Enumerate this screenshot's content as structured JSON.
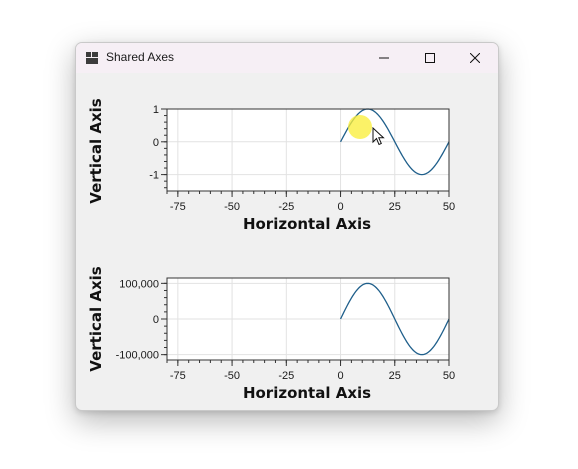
{
  "window": {
    "title": "Shared Axes",
    "controls": [
      "minimize",
      "maximize",
      "close"
    ]
  },
  "icons": {
    "app": "app-icon",
    "minimize": "minimize-icon",
    "maximize": "maximize-icon",
    "close": "close-icon",
    "cursor": "mouse-pointer-icon"
  },
  "colors": {
    "series": "#1f5f8b",
    "grid": "#e2e2e2",
    "frame": "#333333"
  },
  "chart_data": [
    {
      "type": "line",
      "xlabel": "Horizontal Axis",
      "ylabel": "Vertical Axis",
      "xlim": [
        -80,
        50
      ],
      "ylim": [
        -1.5,
        1.0
      ],
      "xticks": [
        -75,
        -50,
        -25,
        0,
        25,
        50
      ],
      "xtick_labels": [
        "-75",
        "-50",
        "-25",
        "0",
        "25",
        "50"
      ],
      "yticks": [
        -1,
        0,
        1
      ],
      "ytick_labels": [
        "-1",
        "0",
        "1"
      ],
      "grid": true,
      "series": [
        {
          "function": "sine",
          "x_start": 0,
          "x_end": 50,
          "amplitude": 1,
          "period": 50
        }
      ]
    },
    {
      "type": "line",
      "xlabel": "Horizontal Axis",
      "ylabel": "Vertical Axis",
      "xlim": [
        -80,
        50
      ],
      "ylim": [
        -115000,
        115000
      ],
      "xticks": [
        -75,
        -50,
        -25,
        0,
        25,
        50
      ],
      "xtick_labels": [
        "-75",
        "-50",
        "-25",
        "0",
        "25",
        "50"
      ],
      "yticks": [
        -100000,
        0,
        100000
      ],
      "ytick_labels": [
        "-100,000",
        "0",
        "100,000"
      ],
      "grid": true,
      "series": [
        {
          "function": "sine",
          "x_start": 0,
          "x_end": 50,
          "amplitude": 100000,
          "period": 50
        }
      ]
    }
  ]
}
